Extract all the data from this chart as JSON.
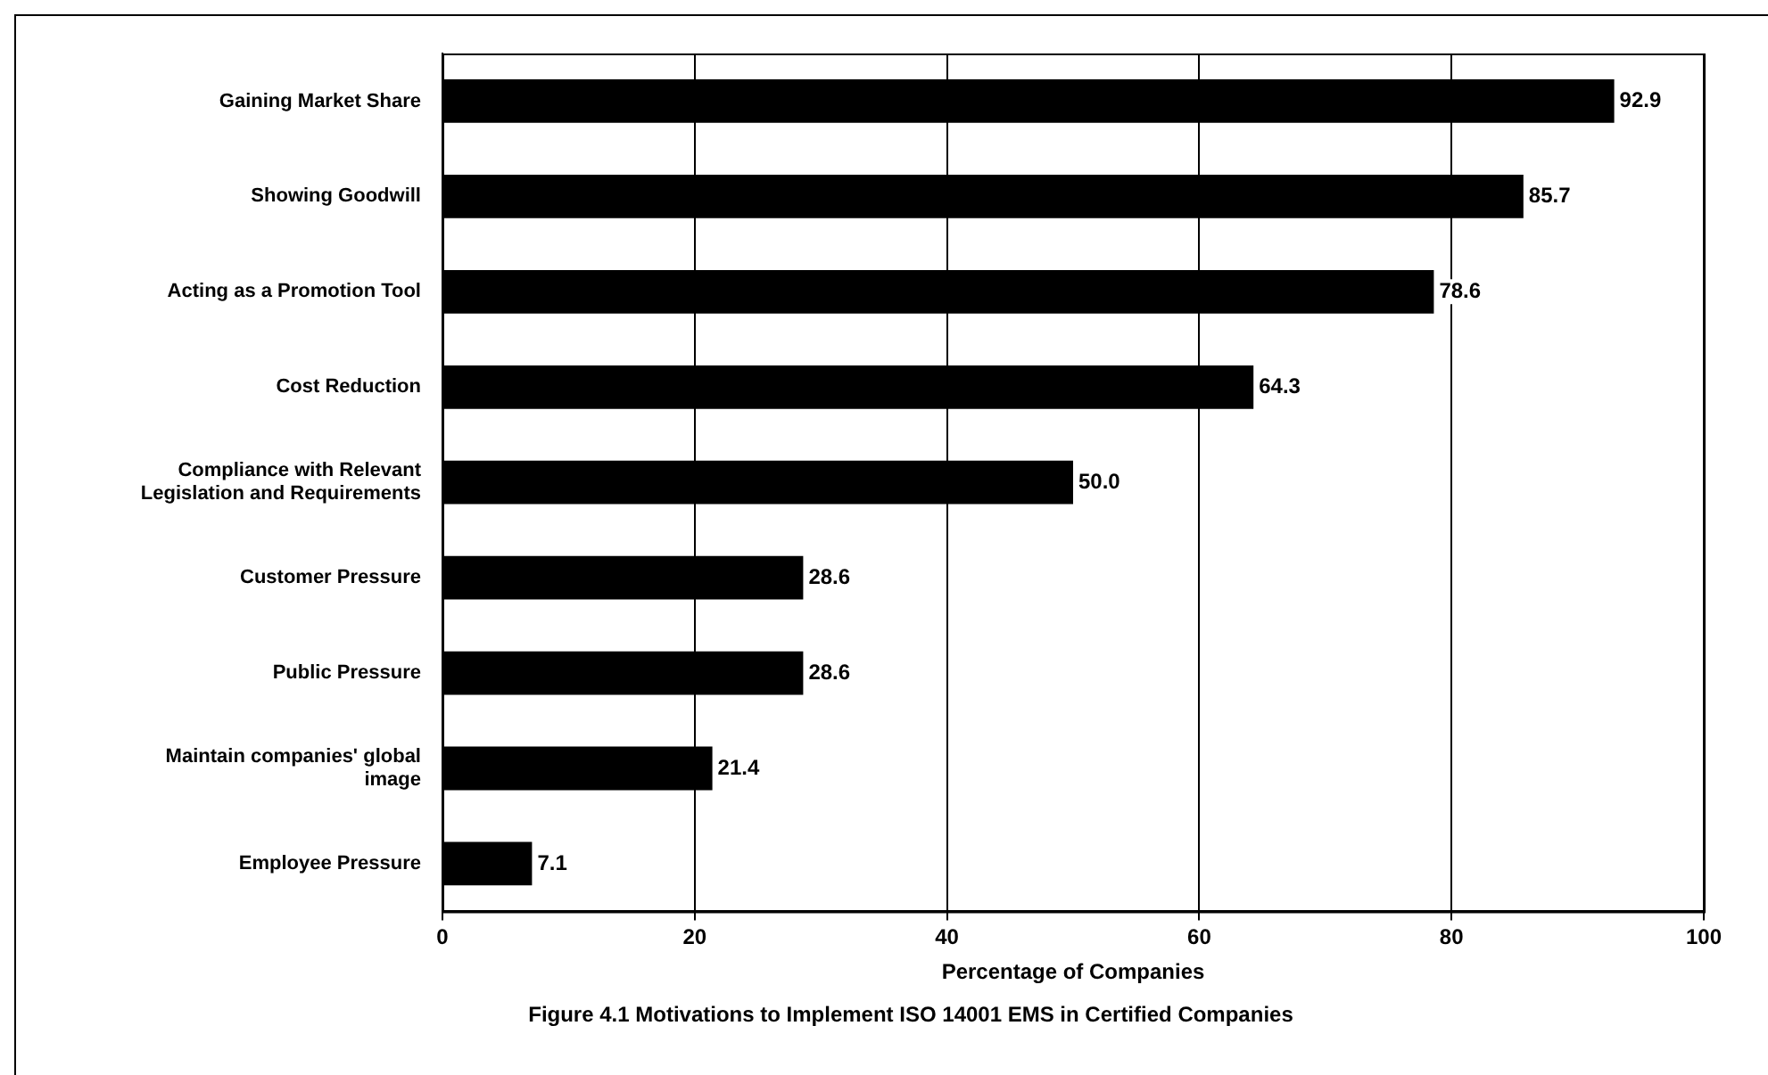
{
  "chart_data": {
    "type": "bar",
    "orientation": "horizontal",
    "categories": [
      "Gaining Market Share",
      "Showing Goodwill",
      "Acting as a Promotion Tool",
      "Cost Reduction",
      "Compliance with Relevant\nLegislation and Requirements",
      "Customer Pressure",
      "Public Pressure",
      "Maintain companies' global\nimage",
      "Employee Pressure"
    ],
    "values": [
      92.9,
      85.7,
      78.6,
      64.3,
      50.0,
      28.6,
      28.6,
      21.4,
      7.1
    ],
    "value_labels": [
      "92.9",
      "85.7",
      "78.6",
      "64.3",
      "50.0",
      "28.6",
      "28.6",
      "21.4",
      "7.1"
    ],
    "color": "#000000",
    "xlabel": "Percentage of Companies",
    "xlim": [
      0,
      100
    ],
    "xticks": [
      0,
      20,
      40,
      60,
      80,
      100
    ],
    "grid": "x",
    "legend": false,
    "annotations": [
      "Figure 4.1  Motivations to Implement ISO 14001 EMS in Certified Companies"
    ]
  }
}
